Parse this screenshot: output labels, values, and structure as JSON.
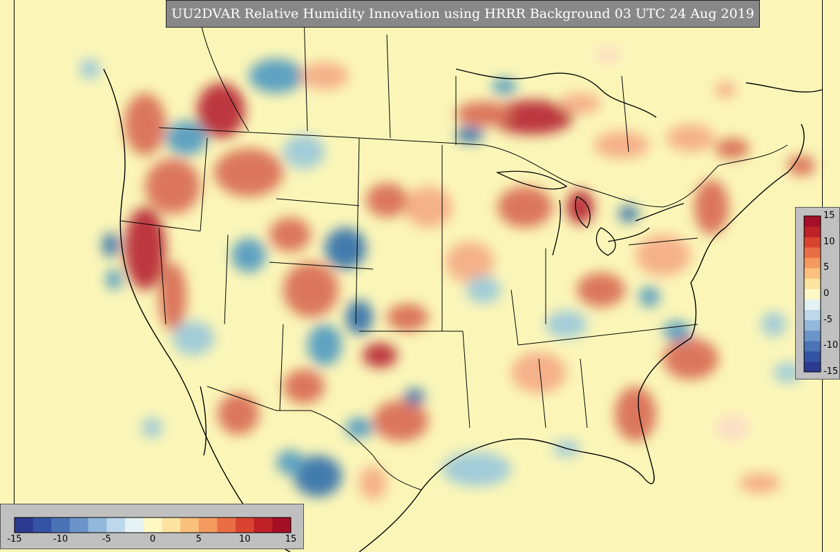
{
  "title": "UU2DVAR Relative Humidity Innovation using HRRR Background 03 UTC 24 Aug 2019",
  "colorbar": {
    "range": [
      -15,
      15
    ],
    "vertical_ticks": [
      "15",
      "10",
      "5",
      "0",
      "-5",
      "-10",
      "-15"
    ],
    "horizontal_ticks": [
      "-15",
      "-10",
      "-5",
      "0",
      "5",
      "10",
      "15"
    ],
    "colors": [
      "#2c3a8f",
      "#3453a3",
      "#4a73b5",
      "#6b95c8",
      "#93b8d9",
      "#bdd8ea",
      "#e4f2f4",
      "#fdf8c4",
      "#fde3a0",
      "#fbc07c",
      "#f59a5f",
      "#ea6e45",
      "#d8442f",
      "#bf2127",
      "#a50f26"
    ]
  }
}
